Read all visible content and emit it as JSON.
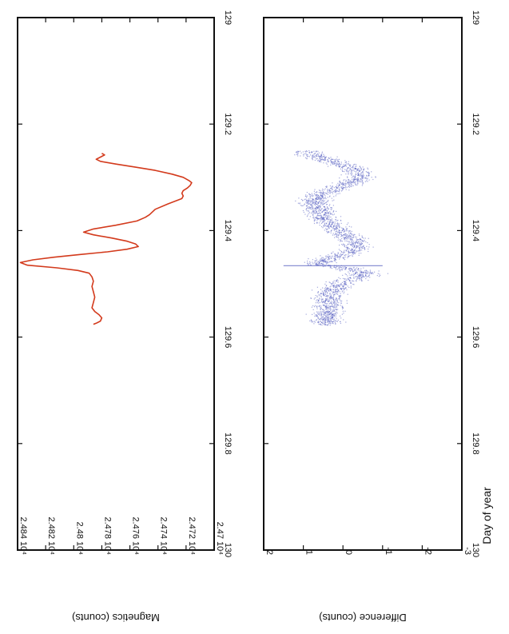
{
  "figure": {
    "orientation": "rotated-90-clockwise",
    "line_color": "#d33a1c",
    "scatter_color": "#5b64c2",
    "frame_color": "#111111"
  },
  "chart_data": [
    {
      "type": "line",
      "name": "magnetics-panel",
      "xlabel": "",
      "ylabel": "Magnetics (counts)",
      "xlim": [
        129,
        130
      ],
      "ylim": [
        24700,
        24840
      ],
      "x_ticks": [
        129,
        129.2,
        129.4,
        129.6,
        129.8,
        130
      ],
      "x_tick_labels": [
        "129",
        "129.2",
        "129.4",
        "129.6",
        "129.8",
        "130"
      ],
      "y_ticks": [
        24700,
        24720,
        24740,
        24760,
        24780,
        24800,
        24820,
        24840
      ],
      "y_tick_labels": [
        "2.47 10⁴",
        "2.472 10⁴",
        "2.474 10⁴",
        "2.476 10⁴",
        "2.478 10⁴",
        "2.48 10⁴",
        "2.482 10⁴",
        "2.484 10⁴"
      ],
      "series": [
        {
          "x": [
            129.255,
            129.258,
            129.262,
            129.266,
            129.27,
            129.275,
            129.281,
            129.287,
            129.294,
            129.3,
            129.306,
            129.31,
            129.315,
            129.32,
            129.325,
            129.33,
            129.335,
            129.34,
            129.35,
            129.36,
            129.37,
            129.375,
            129.382,
            129.39,
            129.397,
            129.403,
            129.408,
            129.414,
            129.42,
            129.425,
            129.43,
            129.435,
            129.44,
            129.445,
            129.45,
            129.455,
            129.46,
            129.465,
            129.47,
            129.475,
            129.48,
            129.487,
            129.495,
            129.505,
            129.515,
            129.525,
            129.535,
            129.545,
            129.552,
            129.558,
            129.564,
            129.57,
            129.574,
            129.576
          ],
          "y": [
            24780,
            24778,
            24781,
            24784,
            24781,
            24770,
            24756,
            24742,
            24730,
            24722,
            24718,
            24716,
            24717,
            24719,
            24722,
            24723,
            24722,
            24723,
            24733,
            24742,
            24746,
            24749,
            24755,
            24770,
            24786,
            24793,
            24786,
            24773,
            24762,
            24756,
            24754,
            24762,
            24776,
            24796,
            24814,
            24829,
            24838,
            24833,
            24812,
            24797,
            24789,
            24787,
            24786,
            24787,
            24786,
            24785,
            24786,
            24787,
            24785,
            24782,
            24780,
            24781,
            24784,
            24786
          ]
        }
      ]
    },
    {
      "type": "scatter",
      "name": "difference-panel",
      "xlabel": "Day of year",
      "ylabel": "Difference (counts)",
      "xlim": [
        129,
        130
      ],
      "ylim": [
        -3,
        2
      ],
      "x_ticks": [
        129,
        129.2,
        129.4,
        129.6,
        129.8,
        130
      ],
      "x_tick_labels": [
        "129",
        "129.2",
        "129.4",
        "129.6",
        "129.8",
        "130"
      ],
      "y_ticks": [
        -3,
        -2,
        -1,
        0,
        1,
        2
      ],
      "y_tick_labels": [
        "-3",
        "-2",
        "-1",
        "0",
        "1",
        "2"
      ],
      "series": [
        {
          "trend_x": [
            129.255,
            129.27,
            129.285,
            129.3,
            129.315,
            129.33,
            129.345,
            129.36,
            129.375,
            129.39,
            129.405,
            129.42,
            129.435,
            129.45,
            129.46,
            129.465,
            129.47,
            129.48,
            129.49,
            129.5,
            129.515,
            129.53,
            129.545,
            129.56,
            129.575
          ],
          "trend_y": [
            0.9,
            0.3,
            -0.3,
            -0.45,
            -0.05,
            0.5,
            0.75,
            0.6,
            0.5,
            0.3,
            0.0,
            -0.3,
            -0.35,
            0.2,
            0.6,
            0.5,
            0.0,
            -0.6,
            -0.25,
            0.1,
            0.3,
            0.35,
            0.35,
            0.4,
            0.4
          ],
          "spread": 0.4,
          "x_range": [
            129.25,
            129.578
          ]
        }
      ]
    }
  ]
}
